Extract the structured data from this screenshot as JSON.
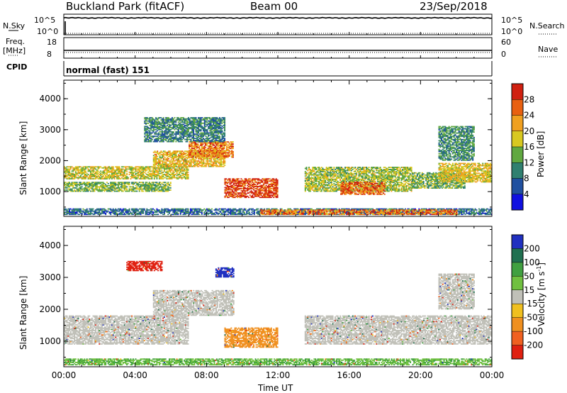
{
  "header": {
    "site": "Buckland Park (fitACF)",
    "beam": "Beam 00",
    "date": "23/Sep/2018"
  },
  "top_panels": {
    "nsky": {
      "label": "N.Sky",
      "ticks": [
        "10^5",
        "10^0"
      ],
      "right_label": "N.Search",
      "right_ticks": [
        "10^5",
        "10^0"
      ]
    },
    "freq": {
      "label_line1": "Freq.",
      "label_line2": "[MHz]",
      "ticks": [
        "18",
        "8"
      ],
      "right_label": "Nave",
      "right_ticks": [
        "60",
        "0"
      ]
    },
    "cpid": {
      "label": "CPID",
      "value": "normal (fast) 151"
    }
  },
  "range_axis": {
    "label": "Slant Range [km]",
    "ticks": [
      "1000",
      "2000",
      "3000",
      "4000"
    ],
    "range": [
      200,
      4600
    ]
  },
  "time_axis": {
    "label": "Time UT",
    "ticks": [
      "00:00",
      "04:00",
      "08:00",
      "12:00",
      "16:00",
      "20:00",
      "00:00"
    ]
  },
  "power_scale": {
    "label": "Power [dB]",
    "ticks": [
      "4",
      "8",
      "12",
      "16",
      "20",
      "24",
      "28"
    ],
    "colors": [
      "#1010e0",
      "#2050a0",
      "#308070",
      "#60a840",
      "#d8c820",
      "#f0a020",
      "#e86010",
      "#d02010"
    ]
  },
  "velocity_scale": {
    "label": "Velocity [m s",
    "label_sup": "-1",
    "label_end": "]",
    "ticks": [
      "200",
      "100",
      "50",
      "15",
      "-15",
      "-50",
      "-100",
      "-200"
    ],
    "colors": [
      "#2030c0",
      "#207050",
      "#40a040",
      "#70c040",
      "#c0c0b8",
      "#f0c020",
      "#f09020",
      "#f06020",
      "#e02010"
    ]
  },
  "chart_data": [
    {
      "type": "line",
      "title": "N.Sky / N.Search",
      "x": [
        0,
        1,
        2,
        4,
        8,
        12,
        16,
        20,
        24
      ],
      "series": [
        {
          "values": [
            4.0,
            4.1,
            4.1,
            4.1,
            4.2,
            4.1,
            4.2,
            4.1,
            4.0
          ]
        }
      ]
    },
    {
      "type": "line",
      "title": "Freq. / Nave",
      "x": [
        0,
        4,
        8,
        12,
        16,
        20,
        24
      ],
      "series": [
        {
          "values": [
            10.5,
            10.5,
            10.5,
            10.5,
            10.5,
            10.5,
            10.5
          ]
        }
      ]
    },
    {
      "type": "heatmap",
      "title": "Power [dB]",
      "xlabel": "Time UT",
      "ylabel": "Slant Range [km]",
      "xlim": [
        0,
        24
      ],
      "ylim": [
        200,
        4600
      ],
      "regions": [
        {
          "t0": 0,
          "t1": 24,
          "r0": 250,
          "r1": 450,
          "value": 10
        },
        {
          "t0": 11,
          "t1": 22,
          "r0": 250,
          "r1": 400,
          "value": 26
        },
        {
          "t0": 0,
          "t1": 7,
          "r0": 1400,
          "r1": 1800,
          "value": 20
        },
        {
          "t0": 0,
          "t1": 6,
          "r0": 1000,
          "r1": 1300,
          "value": 16
        },
        {
          "t0": 5,
          "t1": 9,
          "r0": 1800,
          "r1": 2300,
          "value": 22
        },
        {
          "t0": 7,
          "t1": 9.5,
          "r0": 2100,
          "r1": 2600,
          "value": 26
        },
        {
          "t0": 9,
          "t1": 12,
          "r0": 800,
          "r1": 1400,
          "value": 29
        },
        {
          "t0": 13.5,
          "t1": 19.5,
          "r0": 1000,
          "r1": 1800,
          "value": 18
        },
        {
          "t0": 15.5,
          "t1": 18,
          "r0": 900,
          "r1": 1300,
          "value": 27
        },
        {
          "t0": 19.5,
          "t1": 22.5,
          "r0": 1100,
          "r1": 1600,
          "value": 16
        },
        {
          "t0": 21,
          "t1": 24,
          "r0": 1300,
          "r1": 1900,
          "value": 21
        },
        {
          "t0": 4.5,
          "t1": 9,
          "r0": 2600,
          "r1": 3400,
          "value": 12
        },
        {
          "t0": 21,
          "t1": 23,
          "r0": 2000,
          "r1": 3100,
          "value": 13
        }
      ]
    },
    {
      "type": "heatmap",
      "title": "Velocity [m s-1]",
      "xlabel": "Time UT",
      "ylabel": "Slant Range [km]",
      "xlim": [
        0,
        24
      ],
      "ylim": [
        200,
        4600
      ],
      "regions": [
        {
          "t0": 0,
          "t1": 24,
          "r0": 250,
          "r1": 450,
          "value": 30
        },
        {
          "t0": 0,
          "t1": 7,
          "r0": 900,
          "r1": 1800,
          "value": 0
        },
        {
          "t0": 5,
          "t1": 9.5,
          "r0": 1800,
          "r1": 2600,
          "value": 0
        },
        {
          "t0": 9,
          "t1": 12,
          "r0": 800,
          "r1": 1400,
          "value": -40
        },
        {
          "t0": 13.5,
          "t1": 24,
          "r0": 900,
          "r1": 1800,
          "value": 0
        },
        {
          "t0": 3.5,
          "t1": 5.5,
          "r0": 3200,
          "r1": 3500,
          "value": -180
        },
        {
          "t0": 8.5,
          "t1": 9.5,
          "r0": 3000,
          "r1": 3300,
          "value": 180
        },
        {
          "t0": 21,
          "t1": 23,
          "r0": 2000,
          "r1": 3100,
          "value": 0
        }
      ]
    }
  ]
}
